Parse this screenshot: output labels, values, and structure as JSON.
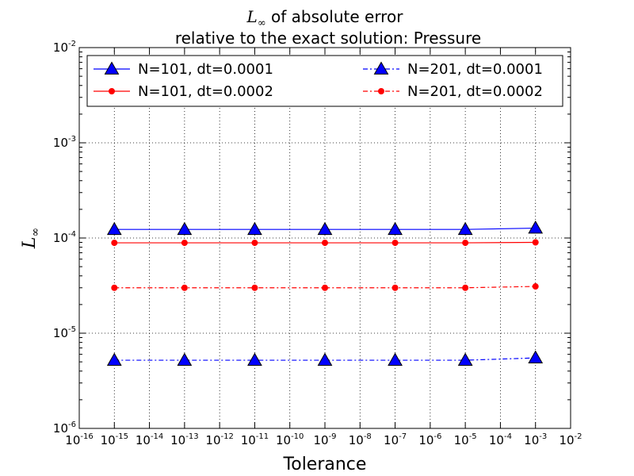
{
  "chart_data": {
    "type": "line",
    "title_line1_math": "L",
    "title_line1_sub": "∞",
    "title_line1_rest": " of absolute error",
    "title_line2": "relative to the exact solution: Pressure",
    "xlabel": "Tolerance",
    "ylabel": "L",
    "ylabel_sub": "∞",
    "x_scale": "log",
    "y_scale": "log",
    "xlim": [
      1e-16,
      0.01
    ],
    "ylim": [
      1e-06,
      0.01
    ],
    "x_tick_exponents": [
      "-16",
      "-15",
      "-14",
      "-13",
      "-12",
      "-11",
      "-10",
      "-9",
      "-8",
      "-7",
      "-6",
      "-5",
      "-4",
      "-3",
      "-2"
    ],
    "y_tick_exponents": [
      "-6",
      "-5",
      "-4",
      "-3",
      "-2"
    ],
    "tick_base": "10",
    "grid": true,
    "legend_position": "top",
    "x": [
      1e-15,
      1e-13,
      1e-11,
      1e-09,
      1e-07,
      1e-05,
      0.001
    ],
    "series": [
      {
        "name": "N=101, dt=0.0001",
        "color": "#0000ff",
        "line": "solid",
        "marker": "triangle",
        "values": [
          0.000123,
          0.000123,
          0.000123,
          0.000123,
          0.000123,
          0.000123,
          0.000127
        ]
      },
      {
        "name": "N=101, dt=0.0002",
        "color": "#ff0000",
        "line": "solid",
        "marker": "dot",
        "values": [
          8.9e-05,
          8.9e-05,
          8.9e-05,
          8.9e-05,
          8.9e-05,
          8.9e-05,
          9e-05
        ]
      },
      {
        "name": "N=201, dt=0.0001",
        "color": "#0000ff",
        "line": "dashdot",
        "marker": "triangle",
        "values": [
          5.2e-06,
          5.2e-06,
          5.2e-06,
          5.2e-06,
          5.2e-06,
          5.2e-06,
          5.5e-06
        ]
      },
      {
        "name": "N=201, dt=0.0002",
        "color": "#ff0000",
        "line": "dashdot",
        "marker": "dot",
        "values": [
          3e-05,
          3e-05,
          3e-05,
          3e-05,
          3e-05,
          3e-05,
          3.1e-05
        ]
      }
    ]
  }
}
